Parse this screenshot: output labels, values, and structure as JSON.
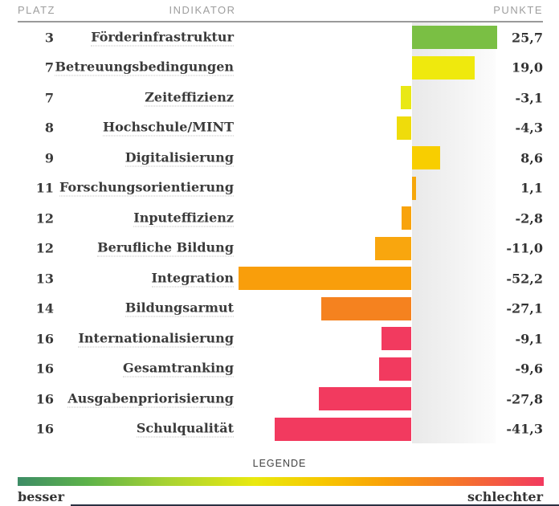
{
  "header": {
    "platz": "PLATZ",
    "indikator": "INDIKATOR",
    "punkte": "PUNKTE"
  },
  "legend": {
    "title": "LEGENDE",
    "left_label": "besser",
    "right_label": "schlechter",
    "gradient_stops": [
      "#3d8c66 0%",
      "#5cb24a 13%",
      "#a6d233 28%",
      "#e9e90f 45%",
      "#f7c700 58%",
      "#f9a008 70%",
      "#f5702e 85%",
      "#f23a5f 100%"
    ]
  },
  "chart_data": {
    "type": "bar",
    "orientation": "horizontal",
    "title": "",
    "xlabel": "",
    "ylabel": "",
    "value_format": "decimal-comma",
    "xlim": [
      -55,
      27
    ],
    "rows": [
      {
        "rank": "3",
        "label": "Förderinfrastruktur",
        "value": 25.7,
        "display": "25,7",
        "color": "#7abf44"
      },
      {
        "rank": "7",
        "label": "Betreuungsbedingungen",
        "value": 19.0,
        "display": "19,0",
        "color": "#efe90d"
      },
      {
        "rank": "7",
        "label": "Zeiteffizienz",
        "value": -3.1,
        "display": "-3,1",
        "color": "#e9e816"
      },
      {
        "rank": "8",
        "label": "Hochschule/MINT",
        "value": -4.3,
        "display": "-4,3",
        "color": "#efdc0b"
      },
      {
        "rank": "9",
        "label": "Digitalisierung",
        "value": 8.6,
        "display": "8,6",
        "color": "#f8ce00"
      },
      {
        "rank": "11",
        "label": "Forschungsorientierung",
        "value": 1.1,
        "display": "1,1",
        "color": "#f6a70b"
      },
      {
        "rank": "12",
        "label": "Inputeffizienz",
        "value": -2.8,
        "display": "-2,8",
        "color": "#f8a30c"
      },
      {
        "rank": "12",
        "label": "Berufliche Bildung",
        "value": -11.0,
        "display": "-11,0",
        "color": "#f9a60e"
      },
      {
        "rank": "13",
        "label": "Integration",
        "value": -52.2,
        "display": "-52,2",
        "color": "#f99e0b"
      },
      {
        "rank": "14",
        "label": "Bildungsarmut",
        "value": -27.1,
        "display": "-27,1",
        "color": "#f5821f"
      },
      {
        "rank": "16",
        "label": "Internationalisierung",
        "value": -9.1,
        "display": "-9,1",
        "color": "#f23a5f"
      },
      {
        "rank": "16",
        "label": "Gesamtranking",
        "value": -9.6,
        "display": "-9,6",
        "color": "#f23a5f"
      },
      {
        "rank": "16",
        "label": "Ausgabenpriorisierung",
        "value": -27.8,
        "display": "-27,8",
        "color": "#f23a5f"
      },
      {
        "rank": "16",
        "label": "Schulqualität",
        "value": -41.3,
        "display": "-41,3",
        "color": "#f23a5f"
      }
    ]
  }
}
